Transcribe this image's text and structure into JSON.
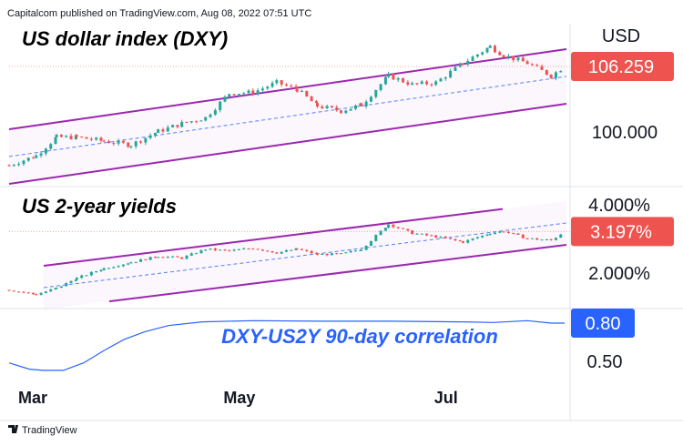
{
  "header": {
    "publisher": "Capitalcom published on TradingView.com, Aug 08, 2022 07:51 UTC"
  },
  "footer": {
    "logo_text": "TradingView"
  },
  "colors": {
    "up": "#26a69a",
    "down": "#ef5350",
    "channel": "#9c27b0",
    "midline": "#2962ff",
    "correlation": "#2962ff",
    "badge_red": "#ef5350",
    "badge_blue": "#2962ff"
  },
  "chart_data": [
    {
      "type": "candlestick",
      "title": "US dollar index (DXY)",
      "unit": "USD",
      "last_value": "106.259",
      "ticks": [
        "100.000"
      ],
      "channel": "ascending regression channel with dashed midline",
      "points": [
        {
          "x": "2022-02-22",
          "y": 96.1
        },
        {
          "x": "2022-03-02",
          "y": 97.1
        },
        {
          "x": "2022-03-08",
          "y": 99.0
        },
        {
          "x": "2022-03-14",
          "y": 99.0
        },
        {
          "x": "2022-03-22",
          "y": 98.6
        },
        {
          "x": "2022-03-30",
          "y": 98.2
        },
        {
          "x": "2022-04-07",
          "y": 99.6
        },
        {
          "x": "2022-04-14",
          "y": 100.4
        },
        {
          "x": "2022-04-21",
          "y": 101.0
        },
        {
          "x": "2022-04-28",
          "y": 103.5
        },
        {
          "x": "2022-05-05",
          "y": 103.6
        },
        {
          "x": "2022-05-12",
          "y": 104.6
        },
        {
          "x": "2022-05-18",
          "y": 103.9
        },
        {
          "x": "2022-05-24",
          "y": 102.2
        },
        {
          "x": "2022-05-31",
          "y": 101.7
        },
        {
          "x": "2022-06-06",
          "y": 102.3
        },
        {
          "x": "2022-06-14",
          "y": 105.3
        },
        {
          "x": "2022-06-21",
          "y": 104.4
        },
        {
          "x": "2022-06-28",
          "y": 104.6
        },
        {
          "x": "2022-07-06",
          "y": 106.6
        },
        {
          "x": "2022-07-14",
          "y": 108.3
        },
        {
          "x": "2022-07-18",
          "y": 107.4
        },
        {
          "x": "2022-07-25",
          "y": 106.6
        },
        {
          "x": "2022-08-01",
          "y": 105.3
        },
        {
          "x": "2022-08-05",
          "y": 106.259
        }
      ]
    },
    {
      "type": "candlestick",
      "title": "US 2-year yields",
      "unit": "%",
      "last_value": "3.197%",
      "ticks": [
        "4.000%",
        "2.000%"
      ],
      "channel": "ascending regression channel with dashed midline",
      "points": [
        {
          "x": "2022-02-22",
          "y": 1.55
        },
        {
          "x": "2022-03-02",
          "y": 1.42
        },
        {
          "x": "2022-03-08",
          "y": 1.6
        },
        {
          "x": "2022-03-14",
          "y": 1.88
        },
        {
          "x": "2022-03-22",
          "y": 2.16
        },
        {
          "x": "2022-03-30",
          "y": 2.33
        },
        {
          "x": "2022-04-07",
          "y": 2.5
        },
        {
          "x": "2022-04-14",
          "y": 2.45
        },
        {
          "x": "2022-04-21",
          "y": 2.7
        },
        {
          "x": "2022-04-28",
          "y": 2.65
        },
        {
          "x": "2022-05-05",
          "y": 2.73
        },
        {
          "x": "2022-05-12",
          "y": 2.6
        },
        {
          "x": "2022-05-18",
          "y": 2.7
        },
        {
          "x": "2022-05-24",
          "y": 2.55
        },
        {
          "x": "2022-05-31",
          "y": 2.56
        },
        {
          "x": "2022-06-06",
          "y": 2.7
        },
        {
          "x": "2022-06-14",
          "y": 3.4
        },
        {
          "x": "2022-06-21",
          "y": 3.15
        },
        {
          "x": "2022-06-28",
          "y": 3.05
        },
        {
          "x": "2022-07-06",
          "y": 2.9
        },
        {
          "x": "2022-07-14",
          "y": 3.15
        },
        {
          "x": "2022-07-18",
          "y": 3.2
        },
        {
          "x": "2022-07-25",
          "y": 3.0
        },
        {
          "x": "2022-08-01",
          "y": 2.95
        },
        {
          "x": "2022-08-05",
          "y": 3.197
        }
      ]
    },
    {
      "type": "line",
      "title": "DXY-US2Y 90-day correlation",
      "last_value": "0.80",
      "ticks": [
        "0.50"
      ],
      "points": [
        {
          "x": "2022-02-22",
          "y": 0.48
        },
        {
          "x": "2022-02-28",
          "y": 0.43
        },
        {
          "x": "2022-03-04",
          "y": 0.42
        },
        {
          "x": "2022-03-10",
          "y": 0.42
        },
        {
          "x": "2022-03-16",
          "y": 0.48
        },
        {
          "x": "2022-03-22",
          "y": 0.58
        },
        {
          "x": "2022-03-28",
          "y": 0.67
        },
        {
          "x": "2022-04-03",
          "y": 0.73
        },
        {
          "x": "2022-04-10",
          "y": 0.78
        },
        {
          "x": "2022-04-20",
          "y": 0.81
        },
        {
          "x": "2022-05-05",
          "y": 0.82
        },
        {
          "x": "2022-05-25",
          "y": 0.815
        },
        {
          "x": "2022-06-15",
          "y": 0.815
        },
        {
          "x": "2022-07-05",
          "y": 0.81
        },
        {
          "x": "2022-07-15",
          "y": 0.805
        },
        {
          "x": "2022-07-25",
          "y": 0.82
        },
        {
          "x": "2022-08-01",
          "y": 0.8
        },
        {
          "x": "2022-08-05",
          "y": 0.8
        }
      ]
    }
  ],
  "x_axis": {
    "labels": [
      {
        "text": "Mar",
        "date": "2022-03-01"
      },
      {
        "text": "May",
        "date": "2022-05-01"
      },
      {
        "text": "Jul",
        "date": "2022-07-01"
      }
    ]
  }
}
